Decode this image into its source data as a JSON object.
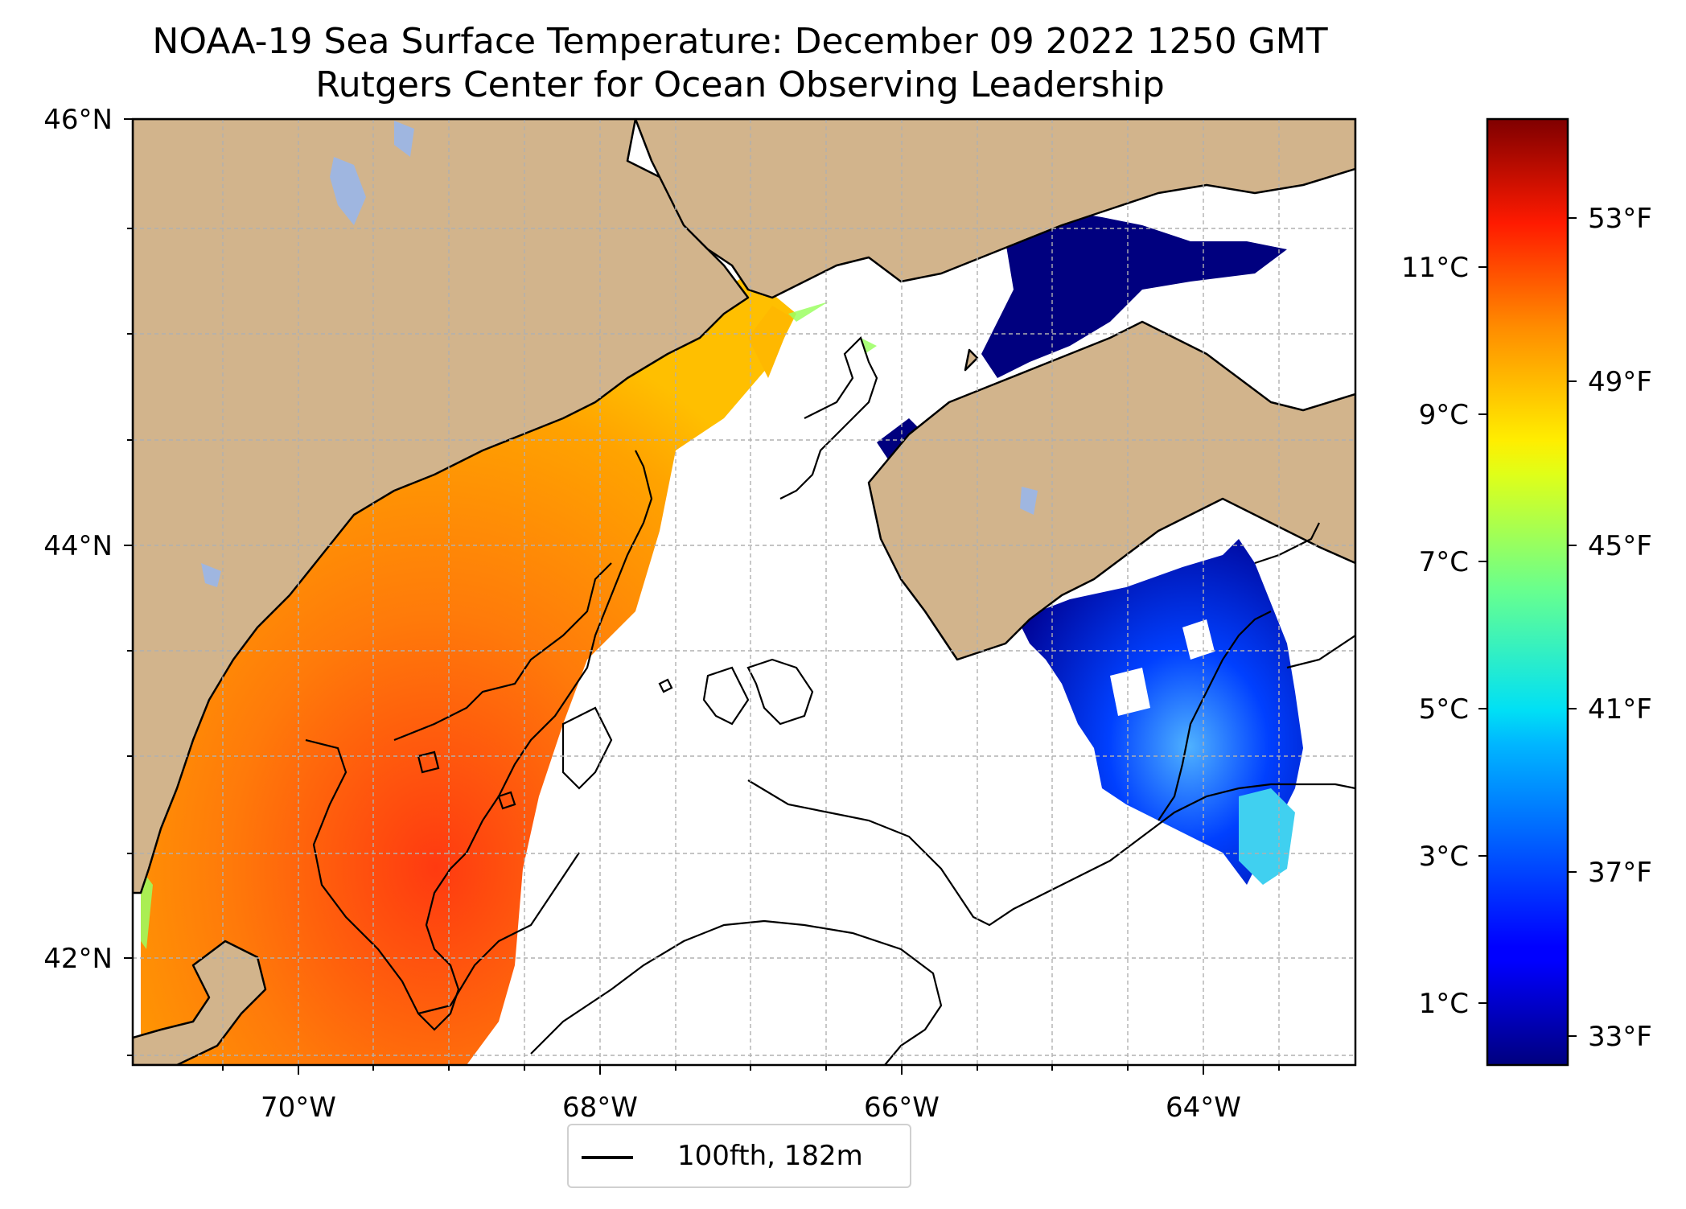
{
  "title": {
    "line1": "NOAA-19 Sea Surface Temperature: December 09 2022 1250 GMT",
    "line2": "Rutgers Center for Ocean Observing Leadership"
  },
  "map": {
    "lat_labels": [
      "46°N",
      "44°N",
      "42°N"
    ],
    "lon_labels": [
      "70°W",
      "68°W",
      "66°W",
      "64°W"
    ],
    "gridlines": "dashed",
    "land_color": "#d2b48c",
    "lake_color": "#9fb6e0",
    "ocean_nodata_color": "#ffffff",
    "legend_label": "100fth, 182m",
    "legend_placement": "bottom-center"
  },
  "colorbar": {
    "colormap": "jet",
    "celsius_labels": [
      "11°C",
      "9°C",
      "7°C",
      "5°C",
      "3°C",
      "1°C"
    ],
    "fahrenheit_labels": [
      "53°F",
      "49°F",
      "45°F",
      "41°F",
      "37°F",
      "33°F"
    ]
  }
}
